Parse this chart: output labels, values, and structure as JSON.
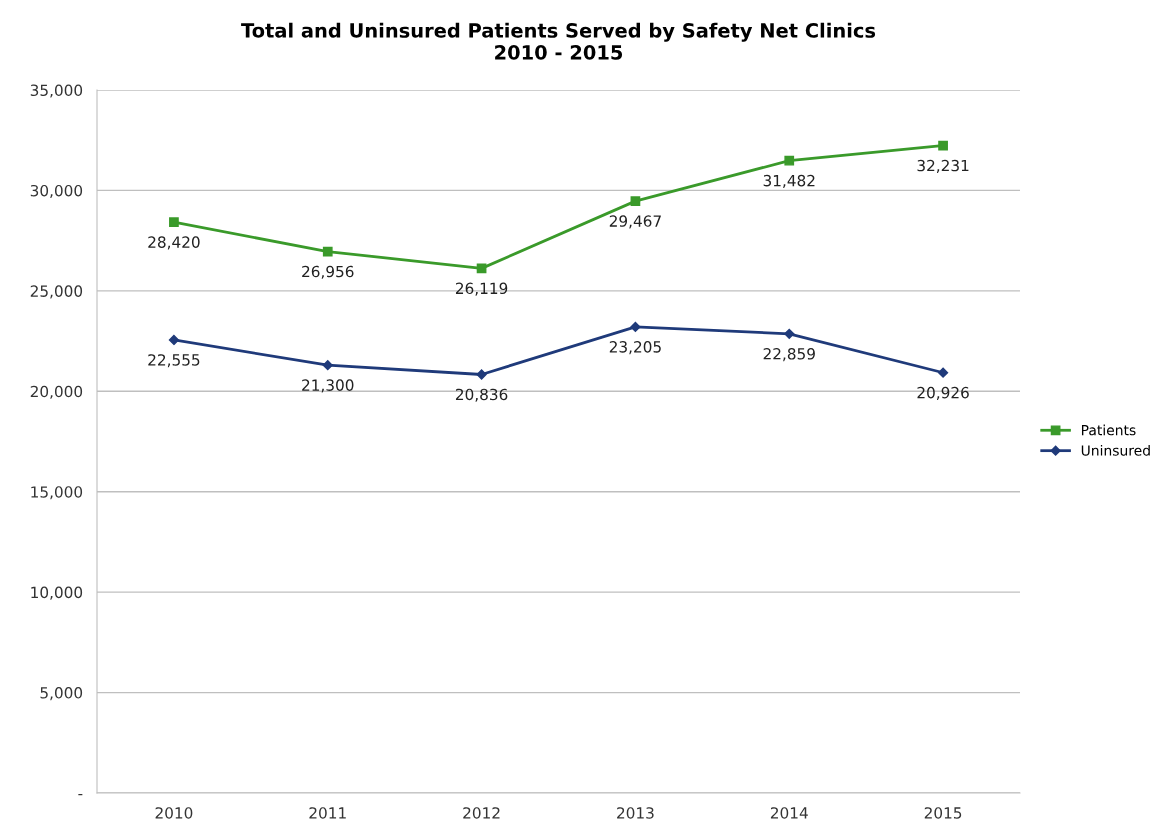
{
  "chart_data": {
    "type": "line",
    "title": "Total and Uninsured Patients Served by Safety Net Clinics\n2010 - 2015",
    "categories": [
      "2010",
      "2011",
      "2012",
      "2013",
      "2014",
      "2015"
    ],
    "series": [
      {
        "name": "Patients",
        "color": "#3a9a2a",
        "marker": "square",
        "values": [
          28420,
          26956,
          26119,
          29467,
          31482,
          32231
        ],
        "value_labels": [
          "28,420",
          "26,956",
          "26,119",
          "29,467",
          "31,482",
          "32,231"
        ]
      },
      {
        "name": "Uninsured",
        "color": "#1f3a7a",
        "marker": "diamond",
        "values": [
          22555,
          21300,
          20836,
          23205,
          22859,
          20926
        ],
        "value_labels": [
          "22,555",
          "21,300",
          "20,836",
          "23,205",
          "22,859",
          "20,926"
        ]
      }
    ],
    "ylim": [
      0,
      35000
    ],
    "yticks": [
      {
        "value": 0,
        "label": "-"
      },
      {
        "value": 5000,
        "label": "5,000"
      },
      {
        "value": 10000,
        "label": "10,000"
      },
      {
        "value": 15000,
        "label": "15,000"
      },
      {
        "value": 20000,
        "label": "20,000"
      },
      {
        "value": 25000,
        "label": "25,000"
      },
      {
        "value": 30000,
        "label": "30,000"
      },
      {
        "value": 35000,
        "label": "35,000"
      }
    ],
    "grid": "y",
    "legend": "right",
    "line_style": "solid"
  }
}
